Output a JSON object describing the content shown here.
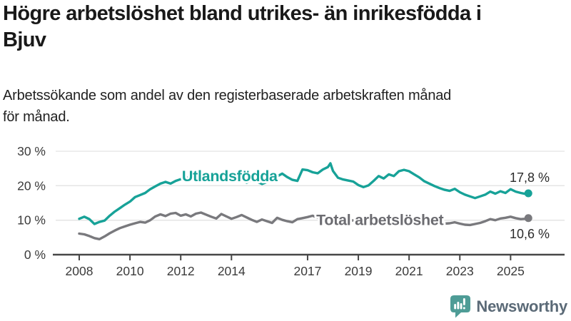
{
  "header": {
    "title_line1": "Högre arbetslöshet bland utrikes- än inrikesfödda i",
    "title_line2": "Bjuv",
    "subtitle_line1": "Arbetssökande som andel av den registerbaserade arbetskraften månad",
    "subtitle_line2": "för månad."
  },
  "footer": {
    "brand": "Newsworthy",
    "brand_icon": "newsworthy-bubble-bar-chart-icon",
    "brand_icon_color": "#4E9C96",
    "brand_text_color": "#5B6A77"
  },
  "chart_data": {
    "type": "line",
    "title": "Högre arbetslöshet bland utrikes- än inrikesfödda i Bjuv",
    "subtitle": "Arbetssökande som andel av den registerbaserade arbetskraften månad för månad.",
    "xlabel": "",
    "ylabel": "",
    "x_range": [
      2008,
      2025.75
    ],
    "ylim": [
      0,
      30
    ],
    "grid": "horizontal",
    "legend_position": "inline-labels",
    "axis_color": "#474747",
    "gridline_color": "#E3E3E3",
    "tick_label_color": "#3B3B3B",
    "end_label_color": "#2B2B2B",
    "y_ticks": [
      {
        "value": 30,
        "label": "30 %"
      },
      {
        "value": 20,
        "label": "20 %"
      },
      {
        "value": 10,
        "label": "10 %"
      },
      {
        "value": 0,
        "label": "0 %"
      }
    ],
    "x_ticks": [
      {
        "value": 2008,
        "label": "2008"
      },
      {
        "value": 2010,
        "label": "2010"
      },
      {
        "value": 2012,
        "label": "2012"
      },
      {
        "value": 2014,
        "label": "2014"
      },
      {
        "value": 2017,
        "label": "2017"
      },
      {
        "value": 2019,
        "label": "2019"
      },
      {
        "value": 2021,
        "label": "2021"
      },
      {
        "value": 2023,
        "label": "2023"
      },
      {
        "value": 2025,
        "label": "2025"
      }
    ],
    "series": [
      {
        "name": "Total arbetslöshet",
        "color": "#79797D",
        "label_color": "#6C6C71",
        "end_value": 10.6,
        "end_value_label": "10,6 %",
        "end_label_position": "below",
        "label_anchor": {
          "x": 2019.85,
          "y": 10.15
        },
        "points": [
          [
            2008.0,
            6.1
          ],
          [
            2008.2,
            5.9
          ],
          [
            2008.4,
            5.4
          ],
          [
            2008.6,
            4.8
          ],
          [
            2008.8,
            4.5
          ],
          [
            2009.0,
            5.3
          ],
          [
            2009.2,
            6.2
          ],
          [
            2009.4,
            7.0
          ],
          [
            2009.6,
            7.7
          ],
          [
            2009.8,
            8.2
          ],
          [
            2010.0,
            8.7
          ],
          [
            2010.2,
            9.1
          ],
          [
            2010.4,
            9.5
          ],
          [
            2010.6,
            9.3
          ],
          [
            2010.8,
            10.0
          ],
          [
            2011.0,
            11.1
          ],
          [
            2011.2,
            11.7
          ],
          [
            2011.4,
            11.2
          ],
          [
            2011.6,
            11.9
          ],
          [
            2011.8,
            12.1
          ],
          [
            2012.0,
            11.3
          ],
          [
            2012.2,
            11.7
          ],
          [
            2012.4,
            11.1
          ],
          [
            2012.6,
            11.9
          ],
          [
            2012.8,
            12.2
          ],
          [
            2013.0,
            11.6
          ],
          [
            2013.2,
            11.0
          ],
          [
            2013.4,
            10.5
          ],
          [
            2013.6,
            11.8
          ],
          [
            2013.8,
            11.1
          ],
          [
            2014.0,
            10.4
          ],
          [
            2014.2,
            10.9
          ],
          [
            2014.4,
            11.5
          ],
          [
            2014.6,
            10.8
          ],
          [
            2014.8,
            10.1
          ],
          [
            2015.0,
            9.5
          ],
          [
            2015.2,
            10.2
          ],
          [
            2015.4,
            9.7
          ],
          [
            2015.6,
            9.2
          ],
          [
            2015.8,
            10.7
          ],
          [
            2016.0,
            10.1
          ],
          [
            2016.2,
            9.7
          ],
          [
            2016.4,
            9.4
          ],
          [
            2016.6,
            10.3
          ],
          [
            2016.8,
            10.6
          ],
          [
            2017.0,
            10.9
          ],
          [
            2017.2,
            11.3
          ],
          [
            2017.4,
            10.7
          ],
          [
            2017.6,
            10.3
          ],
          [
            2017.8,
            10.8
          ],
          [
            2018.0,
            10.5
          ],
          [
            2018.2,
            10.0
          ],
          [
            2018.4,
            9.8
          ],
          [
            2018.6,
            10.2
          ],
          [
            2018.8,
            9.9
          ],
          [
            2019.0,
            9.6
          ],
          [
            2019.2,
            10.0
          ],
          [
            2019.4,
            9.6
          ],
          [
            2019.6,
            9.9
          ],
          [
            2019.8,
            10.3
          ],
          [
            2020.0,
            10.0
          ],
          [
            2020.2,
            10.7
          ],
          [
            2020.4,
            11.2
          ],
          [
            2020.6,
            10.9
          ],
          [
            2020.8,
            11.3
          ],
          [
            2021.0,
            11.0
          ],
          [
            2021.2,
            10.7
          ],
          [
            2021.4,
            10.3
          ],
          [
            2021.6,
            10.0
          ],
          [
            2021.8,
            9.8
          ],
          [
            2022.0,
            9.5
          ],
          [
            2022.2,
            9.2
          ],
          [
            2022.4,
            9.0
          ],
          [
            2022.6,
            9.1
          ],
          [
            2022.8,
            9.4
          ],
          [
            2023.0,
            9.0
          ],
          [
            2023.2,
            8.7
          ],
          [
            2023.4,
            8.6
          ],
          [
            2023.6,
            8.9
          ],
          [
            2023.8,
            9.2
          ],
          [
            2024.0,
            9.7
          ],
          [
            2024.2,
            10.3
          ],
          [
            2024.4,
            10.0
          ],
          [
            2024.6,
            10.5
          ],
          [
            2024.8,
            10.7
          ],
          [
            2025.0,
            11.0
          ],
          [
            2025.2,
            10.6
          ],
          [
            2025.4,
            10.3
          ],
          [
            2025.6,
            10.4
          ],
          [
            2025.7,
            10.6
          ]
        ]
      },
      {
        "name": "Utlandsfödda",
        "color": "#17A298",
        "label_color": "#17A298",
        "end_value": 17.8,
        "end_value_label": "17,8 %",
        "end_label_position": "above",
        "label_anchor": {
          "x": 2013.93,
          "y": 22.9
        },
        "points": [
          [
            2008.0,
            10.4
          ],
          [
            2008.2,
            11.0
          ],
          [
            2008.4,
            10.3
          ],
          [
            2008.6,
            8.9
          ],
          [
            2008.8,
            9.5
          ],
          [
            2009.0,
            9.9
          ],
          [
            2009.2,
            11.3
          ],
          [
            2009.4,
            12.5
          ],
          [
            2009.6,
            13.5
          ],
          [
            2009.8,
            14.5
          ],
          [
            2010.0,
            15.4
          ],
          [
            2010.2,
            16.7
          ],
          [
            2010.4,
            17.3
          ],
          [
            2010.6,
            17.9
          ],
          [
            2010.8,
            19.0
          ],
          [
            2011.0,
            19.8
          ],
          [
            2011.2,
            20.6
          ],
          [
            2011.4,
            21.1
          ],
          [
            2011.6,
            20.6
          ],
          [
            2011.8,
            21.4
          ],
          [
            2012.0,
            21.9
          ],
          [
            2012.2,
            22.5
          ],
          [
            2012.4,
            21.9
          ],
          [
            2012.6,
            22.6
          ],
          [
            2012.8,
            22.2
          ],
          [
            2013.0,
            22.9
          ],
          [
            2013.2,
            23.4
          ],
          [
            2013.4,
            22.8
          ],
          [
            2013.6,
            23.2
          ],
          [
            2013.8,
            23.6
          ],
          [
            2014.0,
            23.0
          ],
          [
            2014.2,
            22.3
          ],
          [
            2014.4,
            21.6
          ],
          [
            2014.6,
            20.9
          ],
          [
            2014.8,
            21.7
          ],
          [
            2015.0,
            21.2
          ],
          [
            2015.2,
            20.5
          ],
          [
            2015.4,
            21.1
          ],
          [
            2015.6,
            21.8
          ],
          [
            2015.8,
            22.7
          ],
          [
            2016.0,
            23.5
          ],
          [
            2016.2,
            22.5
          ],
          [
            2016.4,
            21.7
          ],
          [
            2016.6,
            21.4
          ],
          [
            2016.8,
            24.7
          ],
          [
            2017.0,
            24.5
          ],
          [
            2017.2,
            23.9
          ],
          [
            2017.4,
            23.6
          ],
          [
            2017.6,
            24.7
          ],
          [
            2017.8,
            25.4
          ],
          [
            2017.9,
            26.5
          ],
          [
            2018.0,
            24.3
          ],
          [
            2018.2,
            22.3
          ],
          [
            2018.4,
            21.8
          ],
          [
            2018.6,
            21.5
          ],
          [
            2018.8,
            21.2
          ],
          [
            2019.0,
            20.2
          ],
          [
            2019.2,
            19.6
          ],
          [
            2019.4,
            20.1
          ],
          [
            2019.6,
            21.4
          ],
          [
            2019.8,
            22.8
          ],
          [
            2020.0,
            22.1
          ],
          [
            2020.2,
            23.3
          ],
          [
            2020.4,
            22.8
          ],
          [
            2020.6,
            24.2
          ],
          [
            2020.8,
            24.6
          ],
          [
            2021.0,
            24.2
          ],
          [
            2021.2,
            23.3
          ],
          [
            2021.4,
            22.4
          ],
          [
            2021.6,
            21.3
          ],
          [
            2021.8,
            20.6
          ],
          [
            2022.0,
            19.9
          ],
          [
            2022.2,
            19.3
          ],
          [
            2022.4,
            18.8
          ],
          [
            2022.6,
            18.5
          ],
          [
            2022.8,
            19.1
          ],
          [
            2023.0,
            18.1
          ],
          [
            2023.2,
            17.4
          ],
          [
            2023.4,
            16.9
          ],
          [
            2023.6,
            16.4
          ],
          [
            2023.8,
            16.9
          ],
          [
            2024.0,
            17.4
          ],
          [
            2024.2,
            18.3
          ],
          [
            2024.4,
            17.7
          ],
          [
            2024.6,
            18.4
          ],
          [
            2024.8,
            17.9
          ],
          [
            2025.0,
            19.0
          ],
          [
            2025.2,
            18.3
          ],
          [
            2025.4,
            17.9
          ],
          [
            2025.6,
            17.6
          ],
          [
            2025.7,
            17.8
          ]
        ]
      }
    ]
  }
}
